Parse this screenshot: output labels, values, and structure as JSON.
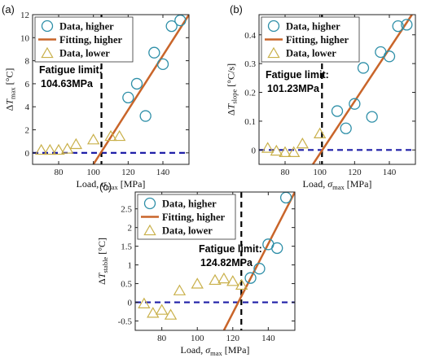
{
  "chart_data": [
    {
      "type": "scatter",
      "panel_label": "(a)",
      "xlabel": "Load, σmax [MPa]",
      "ylabel": "ΔTmax [°C]",
      "xlim": [
        65,
        155
      ],
      "ylim": [
        -1,
        12
      ],
      "xticks": [
        "80",
        "100",
        "120",
        "140"
      ],
      "yticks": [
        "0",
        "2",
        "4",
        "6",
        "8",
        "10",
        "12"
      ],
      "legend": {
        "position": "top-left",
        "entries": [
          "Data, higher",
          "Fitting, higher",
          "Data, lower"
        ]
      },
      "annotation": {
        "line1": "Fatigue limit:",
        "line2": "104.63MPa"
      },
      "fatigue_limit": 104.63,
      "baseline_y": 0,
      "series": [
        {
          "name": "Data, higher",
          "marker": "circle",
          "color": "#2e8fa8",
          "x": [
            120,
            125,
            130,
            135,
            140,
            145,
            150
          ],
          "y": [
            4.8,
            6.0,
            3.2,
            8.7,
            7.7,
            11.0,
            11.5
          ]
        },
        {
          "name": "Data, lower",
          "marker": "triangle",
          "color": "#c9b04a",
          "x": [
            70,
            75,
            80,
            85,
            90,
            100,
            110,
            115
          ],
          "y": [
            0.2,
            0.2,
            0.2,
            0.3,
            0.7,
            1.1,
            1.4,
            1.4
          ]
        },
        {
          "name": "Fitting, higher",
          "marker": "line",
          "color": "#c9652a",
          "x": [
            100,
            155
          ],
          "y": [
            -1.0,
            12.0
          ]
        }
      ]
    },
    {
      "type": "scatter",
      "panel_label": "(b)",
      "xlabel": "Load, σmax [MPa]",
      "ylabel": "ΔTslope [°C/s]",
      "xlim": [
        65,
        155
      ],
      "ylim": [
        -0.05,
        0.47
      ],
      "xticks": [
        "80",
        "100",
        "120",
        "140"
      ],
      "yticks": [
        "0",
        "0.1",
        "0.2",
        "0.3",
        "0.4"
      ],
      "legend": {
        "position": "top-left",
        "entries": [
          "Data, higher",
          "Fitting, higher",
          "Data, lower"
        ]
      },
      "annotation": {
        "line1": "Fatigue limit:",
        "line2": "101.23MPa"
      },
      "fatigue_limit": 101.23,
      "baseline_y": 0,
      "series": [
        {
          "name": "Data, higher",
          "marker": "circle",
          "color": "#2e8fa8",
          "x": [
            110,
            115,
            120,
            125,
            130,
            135,
            140,
            145,
            150
          ],
          "y": [
            0.135,
            0.075,
            0.16,
            0.285,
            0.115,
            0.34,
            0.325,
            0.43,
            0.435
          ]
        },
        {
          "name": "Data, lower",
          "marker": "triangle",
          "color": "#c9b04a",
          "x": [
            70,
            75,
            80,
            85,
            90,
            100
          ],
          "y": [
            0.005,
            -0.005,
            -0.01,
            -0.01,
            0.02,
            0.055
          ]
        },
        {
          "name": "Fitting, higher",
          "marker": "line",
          "color": "#c9652a",
          "x": [
            96,
            153
          ],
          "y": [
            -0.05,
            0.47
          ]
        }
      ]
    },
    {
      "type": "scatter",
      "panel_label": "(c)",
      "xlabel": "Load, σmax [MPa]",
      "ylabel": "ΔTstable [°C]",
      "xlim": [
        65,
        155
      ],
      "ylim": [
        -0.75,
        2.95
      ],
      "xticks": [
        "80",
        "100",
        "120",
        "140"
      ],
      "yticks": [
        "-0.5",
        "0",
        "0.5",
        "1",
        "1.5",
        "2",
        "2.5"
      ],
      "legend": {
        "position": "top-left",
        "entries": [
          "Data, higher",
          "Fitting, higher",
          "Data, lower"
        ]
      },
      "annotation": {
        "line1": "Fatigue limit:",
        "line2": "124.82MPa"
      },
      "fatigue_limit": 124.82,
      "baseline_y": 0,
      "series": [
        {
          "name": "Data, higher",
          "marker": "circle",
          "color": "#2e8fa8",
          "x": [
            130,
            135,
            140,
            145,
            150
          ],
          "y": [
            0.65,
            0.9,
            1.55,
            1.45,
            2.8
          ]
        },
        {
          "name": "Data, lower",
          "marker": "triangle",
          "color": "#c9b04a",
          "x": [
            70,
            75,
            80,
            85,
            90,
            100,
            110,
            115,
            120,
            125
          ],
          "y": [
            -0.05,
            -0.3,
            -0.22,
            -0.35,
            0.3,
            0.48,
            0.58,
            0.62,
            0.55,
            0.45
          ]
        },
        {
          "name": "Fitting, higher",
          "marker": "line",
          "color": "#c9652a",
          "x": [
            115,
            155
          ],
          "y": [
            -0.75,
            2.95
          ]
        }
      ]
    }
  ]
}
